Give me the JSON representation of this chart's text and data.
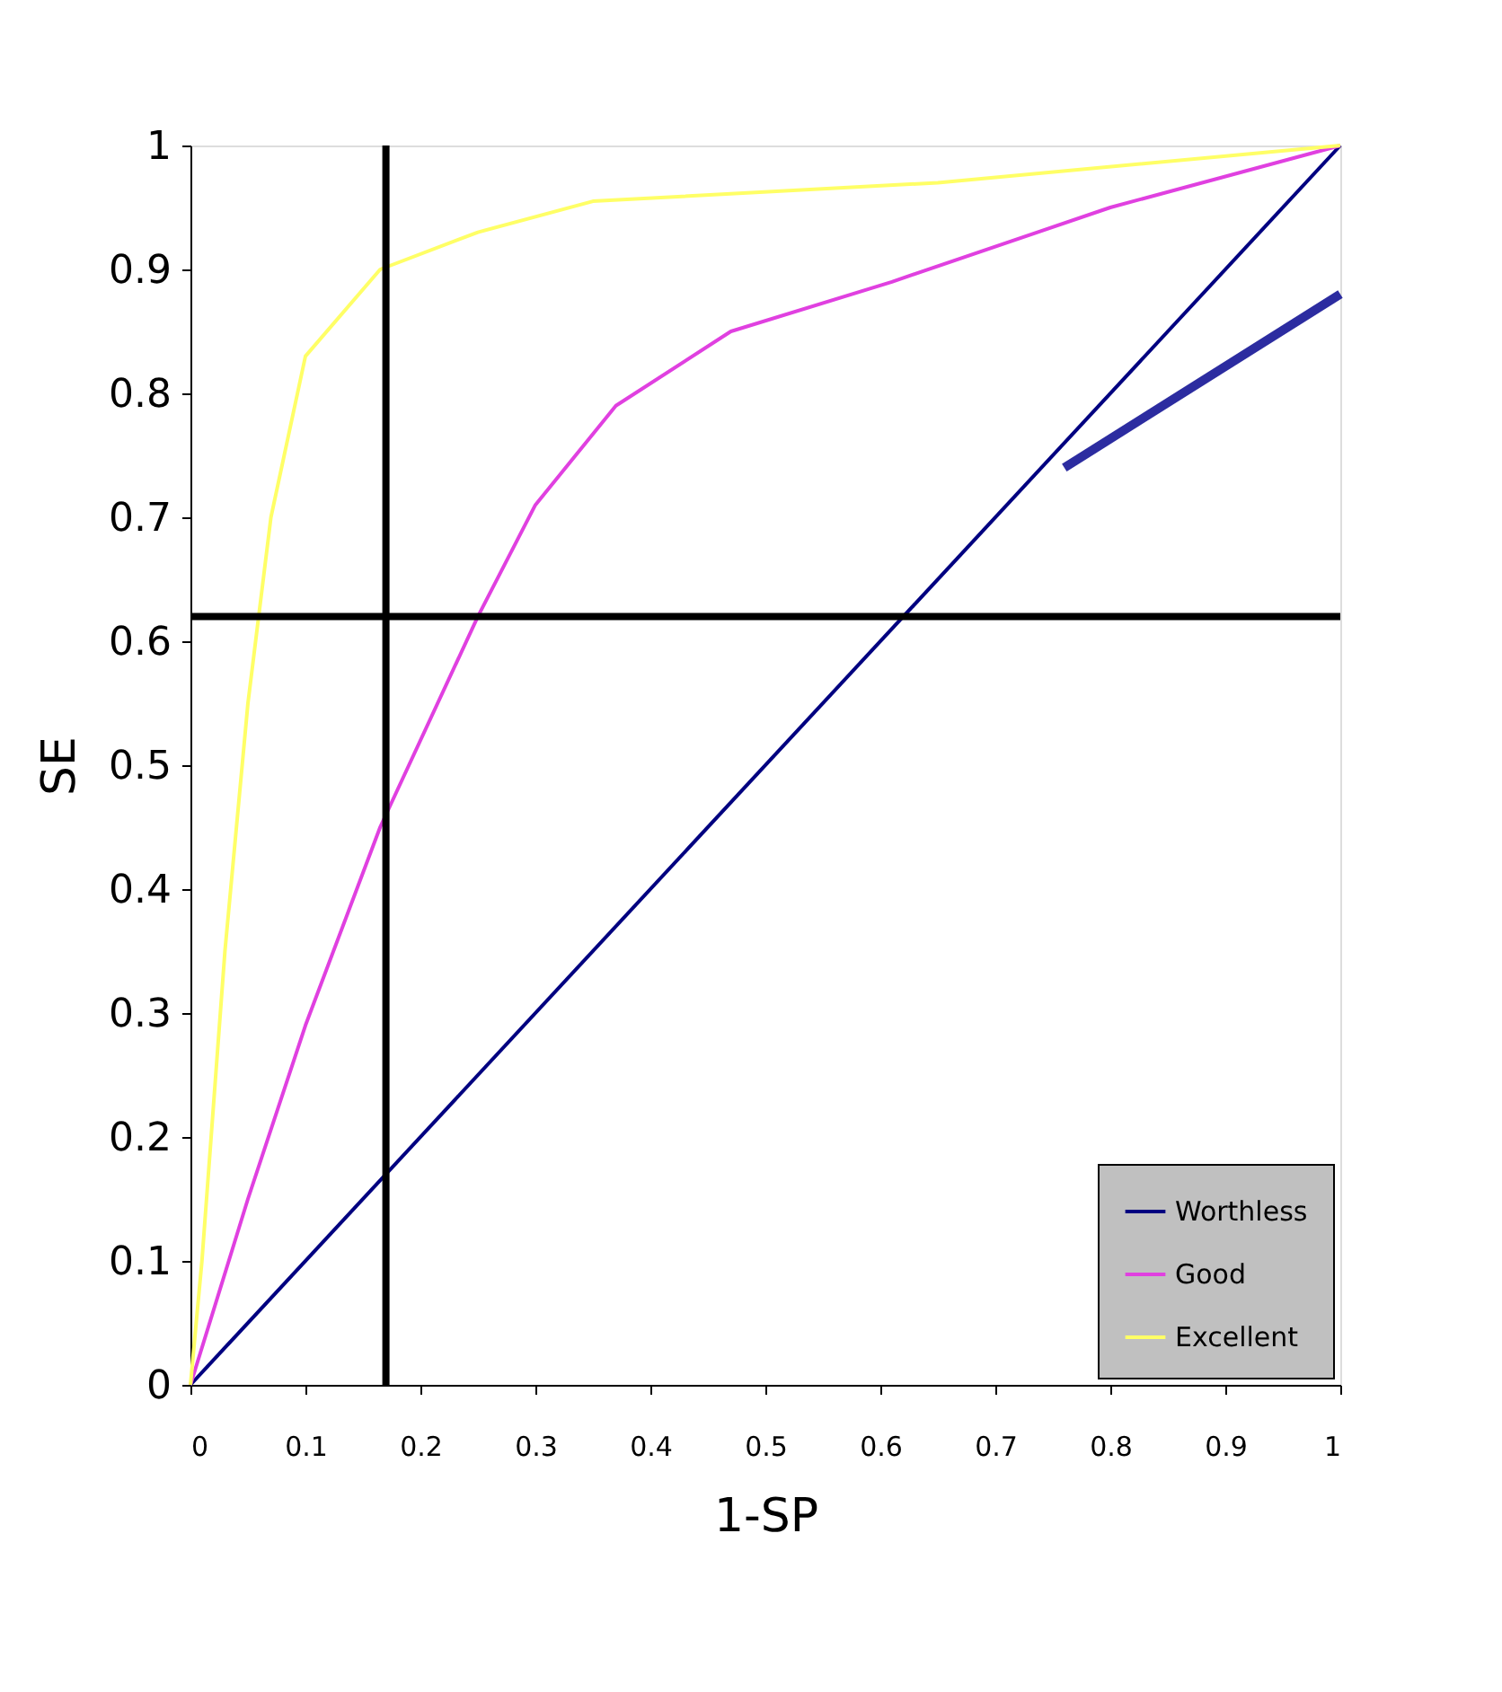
{
  "chart_data": {
    "type": "line",
    "xlabel": "1-SP",
    "ylabel": "SE",
    "xlim": [
      0,
      1
    ],
    "ylim": [
      0,
      1
    ],
    "xticks": [
      0,
      0.1,
      0.2,
      0.3,
      0.4,
      0.5,
      0.6,
      0.7,
      0.8,
      0.9,
      1
    ],
    "yticks": [
      0,
      0.1,
      0.2,
      0.3,
      0.4,
      0.5,
      0.6,
      0.7,
      0.8,
      0.9,
      1
    ],
    "grid": false,
    "legend": "bottom right",
    "marker": "none",
    "line_style": "solid",
    "series": [
      {
        "name": "Worthless",
        "color": "#000080",
        "x": [
          0,
          1
        ],
        "values": [
          0,
          1
        ]
      },
      {
        "name": "Good",
        "color": "#e040e0",
        "x": [
          0,
          0.05,
          0.1,
          0.165,
          0.25,
          0.3,
          0.37,
          0.47,
          0.61,
          0.8,
          1
        ],
        "values": [
          0,
          0.15,
          0.29,
          0.45,
          0.62,
          0.71,
          0.79,
          0.85,
          0.89,
          0.95,
          1
        ]
      },
      {
        "name": "Excellent",
        "color": "#ffff66",
        "x": [
          0,
          0.01,
          0.03,
          0.05,
          0.07,
          0.1,
          0.165,
          0.25,
          0.35,
          0.65,
          1
        ],
        "values": [
          0,
          0.1,
          0.35,
          0.55,
          0.7,
          0.83,
          0.9,
          0.93,
          0.955,
          0.97,
          1
        ]
      },
      {
        "type": "line",
        "color": "#2c2ca0",
        "x": [
          0.76,
          1
        ],
        "values": [
          0.74,
          0.88
        ]
      }
    ],
    "ref_lines": [
      {
        "axis": "x",
        "value": 0.17,
        "color": "#000000"
      },
      {
        "axis": "y",
        "value": 0.62,
        "color": "#000000"
      }
    ]
  }
}
